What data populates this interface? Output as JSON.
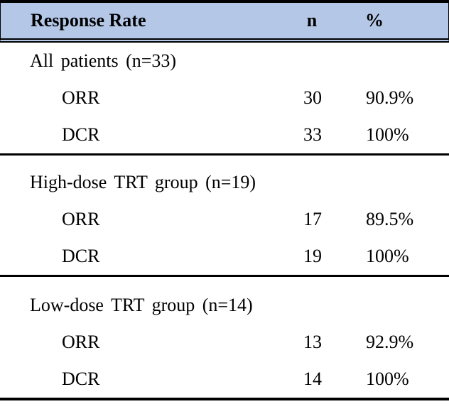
{
  "colors": {
    "header_background": "#b4c7e7",
    "rule": "#000000",
    "text": "#000000"
  },
  "table": {
    "header": {
      "label": "Response Rate",
      "n": "n",
      "pct": "%"
    },
    "sections": [
      {
        "title": "All patients (n=33)",
        "rows": [
          {
            "label": "ORR",
            "n": "30",
            "pct": "90.9%"
          },
          {
            "label": "DCR",
            "n": "33",
            "pct": "100%"
          }
        ]
      },
      {
        "title": "High-dose TRT group (n=19)",
        "rows": [
          {
            "label": "ORR",
            "n": "17",
            "pct": "89.5%"
          },
          {
            "label": "DCR",
            "n": "19",
            "pct": "100%"
          }
        ]
      },
      {
        "title": "Low-dose TRT group (n=14)",
        "rows": [
          {
            "label": "ORR",
            "n": "13",
            "pct": "92.9%"
          },
          {
            "label": "DCR",
            "n": "14",
            "pct": "100%"
          }
        ]
      }
    ]
  }
}
